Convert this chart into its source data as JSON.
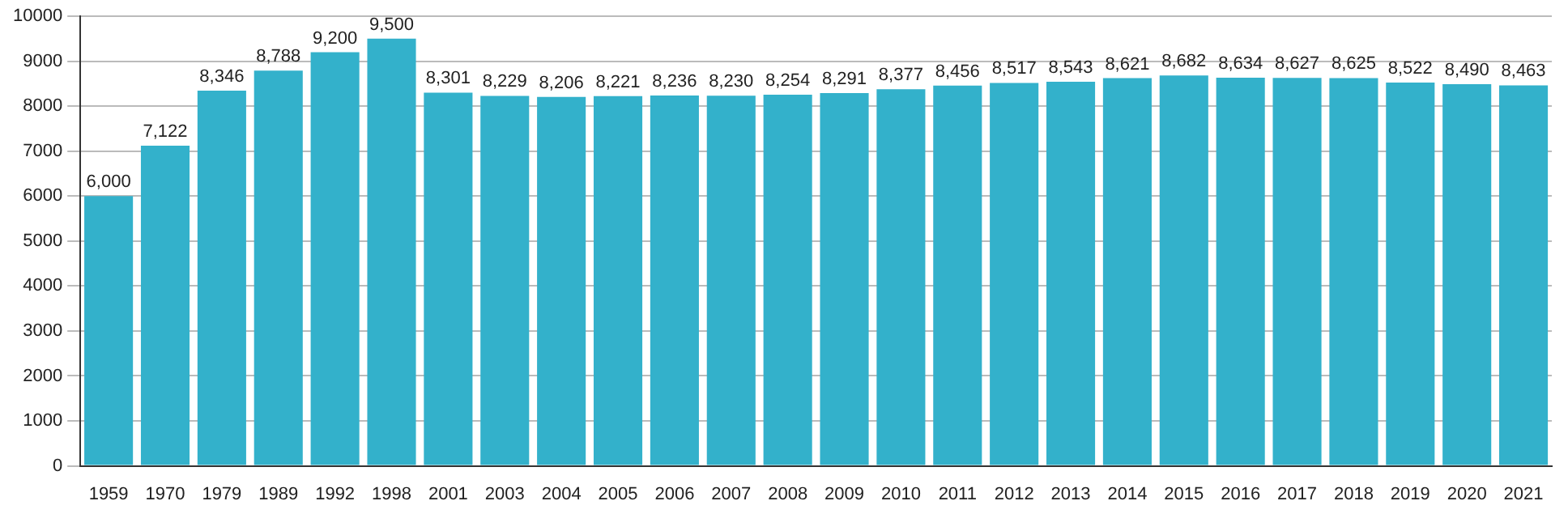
{
  "chart_data": {
    "type": "bar",
    "categories": [
      "1959",
      "1970",
      "1979",
      "1989",
      "1992",
      "1998",
      "2001",
      "2003",
      "2004",
      "2005",
      "2006",
      "2007",
      "2008",
      "2009",
      "2010",
      "2011",
      "2012",
      "2013",
      "2014",
      "2015",
      "2016",
      "2017",
      "2018",
      "2019",
      "2020",
      "2021"
    ],
    "values": [
      6000,
      7122,
      8346,
      8788,
      9200,
      9500,
      8301,
      8229,
      8206,
      8221,
      8236,
      8230,
      8254,
      8291,
      8377,
      8456,
      8517,
      8543,
      8621,
      8682,
      8634,
      8627,
      8625,
      8522,
      8490,
      8463
    ],
    "value_labels": [
      "6,000",
      "7,122",
      "8,346",
      "8,788",
      "9,200",
      "9,500",
      "8,301",
      "8,229",
      "8,206",
      "8,221",
      "8,236",
      "8,230",
      "8,254",
      "8,291",
      "8,377",
      "8,456",
      "8,517",
      "8,543",
      "8,621",
      "8,682",
      "8,634",
      "8,627",
      "8,625",
      "8,522",
      "8,490",
      "8,463"
    ],
    "color": "#33b1cb",
    "ylim": [
      0,
      10000
    ],
    "yticks": [
      0,
      1000,
      2000,
      3000,
      4000,
      5000,
      6000,
      7000,
      8000,
      9000,
      10000
    ],
    "grid": "y",
    "legend": false
  }
}
